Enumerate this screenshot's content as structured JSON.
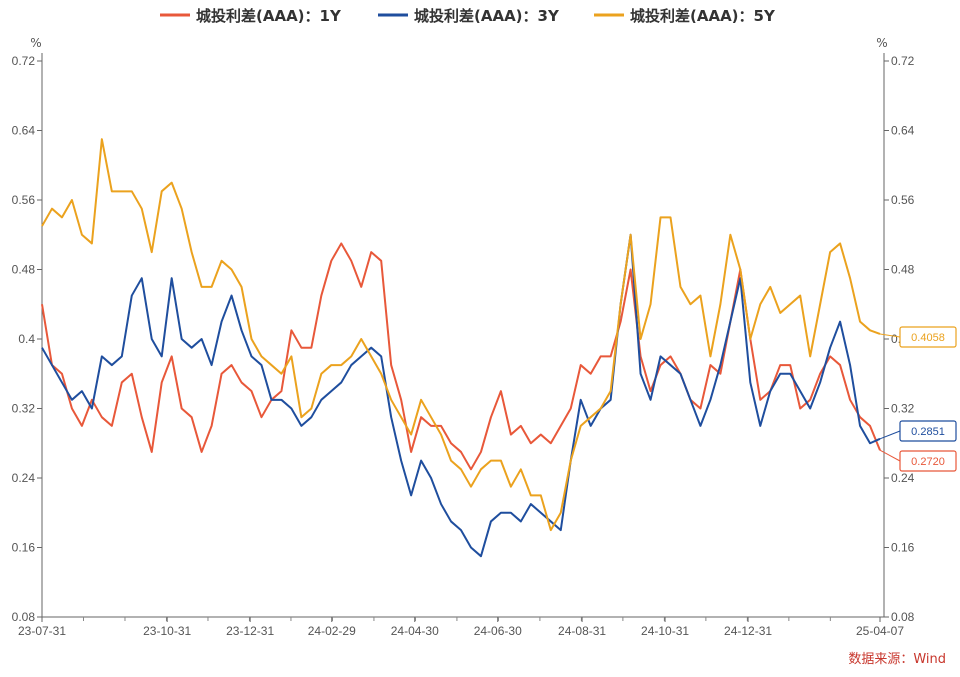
{
  "chart_data": {
    "type": "line",
    "title": "",
    "y_unit_left": "%",
    "y_unit_right": "%",
    "ylim": [
      0.08,
      0.72
    ],
    "y_ticks": [
      "0.08",
      "0.16",
      "0.24",
      "0.32",
      "0.4",
      "0.48",
      "0.56",
      "0.64",
      "0.72"
    ],
    "x_start": "2023-07-31",
    "x_end": "2025-04-07",
    "x_ticks": [
      {
        "date": "2023-07-31",
        "label": "23-07-31"
      },
      {
        "date": "2023-10-31",
        "label": "23-10-31"
      },
      {
        "date": "2023-12-31",
        "label": "23-12-31"
      },
      {
        "date": "2024-02-29",
        "label": "24-02-29"
      },
      {
        "date": "2024-04-30",
        "label": "24-04-30"
      },
      {
        "date": "2024-06-30",
        "label": "24-06-30"
      },
      {
        "date": "2024-08-31",
        "label": "24-08-31"
      },
      {
        "date": "2024-10-31",
        "label": "24-10-31"
      },
      {
        "date": "2024-12-31",
        "label": "24-12-31"
      },
      {
        "date": "2025-04-07",
        "label": "25-04-07"
      }
    ],
    "legend_position": "top-center",
    "series": [
      {
        "name": "城投利差(AAA)：1Y",
        "color": "#e8583a",
        "last_label": "0.2720",
        "values": [
          0.44,
          0.37,
          0.36,
          0.32,
          0.3,
          0.33,
          0.31,
          0.3,
          0.35,
          0.36,
          0.31,
          0.27,
          0.35,
          0.38,
          0.32,
          0.31,
          0.27,
          0.3,
          0.36,
          0.37,
          0.35,
          0.34,
          0.31,
          0.33,
          0.34,
          0.41,
          0.39,
          0.39,
          0.45,
          0.49,
          0.51,
          0.49,
          0.46,
          0.5,
          0.49,
          0.37,
          0.33,
          0.27,
          0.31,
          0.3,
          0.3,
          0.28,
          0.27,
          0.25,
          0.27,
          0.31,
          0.34,
          0.29,
          0.3,
          0.28,
          0.29,
          0.28,
          0.3,
          0.32,
          0.37,
          0.36,
          0.38,
          0.38,
          0.42,
          0.48,
          0.38,
          0.34,
          0.37,
          0.38,
          0.36,
          0.33,
          0.32,
          0.37,
          0.36,
          0.42,
          0.48,
          0.4,
          0.33,
          0.34,
          0.37,
          0.37,
          0.32,
          0.33,
          0.36,
          0.38,
          0.37,
          0.33,
          0.31,
          0.3,
          0.272
        ]
      },
      {
        "name": "城投利差(AAA)：3Y",
        "color": "#1f4e9e",
        "last_label": "0.2851",
        "values": [
          0.39,
          0.37,
          0.35,
          0.33,
          0.34,
          0.32,
          0.38,
          0.37,
          0.38,
          0.45,
          0.47,
          0.4,
          0.38,
          0.47,
          0.4,
          0.39,
          0.4,
          0.37,
          0.42,
          0.45,
          0.41,
          0.38,
          0.37,
          0.33,
          0.33,
          0.32,
          0.3,
          0.31,
          0.33,
          0.34,
          0.35,
          0.37,
          0.38,
          0.39,
          0.38,
          0.31,
          0.26,
          0.22,
          0.26,
          0.24,
          0.21,
          0.19,
          0.18,
          0.16,
          0.15,
          0.19,
          0.2,
          0.2,
          0.19,
          0.21,
          0.2,
          0.19,
          0.18,
          0.26,
          0.33,
          0.3,
          0.32,
          0.33,
          0.44,
          0.52,
          0.36,
          0.33,
          0.38,
          0.37,
          0.36,
          0.33,
          0.3,
          0.33,
          0.37,
          0.42,
          0.47,
          0.35,
          0.3,
          0.34,
          0.36,
          0.36,
          0.34,
          0.32,
          0.35,
          0.39,
          0.42,
          0.37,
          0.3,
          0.28,
          0.2851
        ]
      },
      {
        "name": "城投利差(AAA)：5Y",
        "color": "#eba21e",
        "last_label": "0.4058",
        "values": [
          0.53,
          0.55,
          0.54,
          0.56,
          0.52,
          0.51,
          0.63,
          0.57,
          0.57,
          0.57,
          0.55,
          0.5,
          0.57,
          0.58,
          0.55,
          0.5,
          0.46,
          0.46,
          0.49,
          0.48,
          0.46,
          0.4,
          0.38,
          0.37,
          0.36,
          0.38,
          0.31,
          0.32,
          0.36,
          0.37,
          0.37,
          0.38,
          0.4,
          0.38,
          0.36,
          0.33,
          0.31,
          0.29,
          0.33,
          0.31,
          0.29,
          0.26,
          0.25,
          0.23,
          0.25,
          0.26,
          0.26,
          0.23,
          0.25,
          0.22,
          0.22,
          0.18,
          0.2,
          0.26,
          0.3,
          0.31,
          0.32,
          0.34,
          0.44,
          0.52,
          0.4,
          0.44,
          0.54,
          0.54,
          0.46,
          0.44,
          0.45,
          0.38,
          0.44,
          0.52,
          0.48,
          0.4,
          0.44,
          0.46,
          0.43,
          0.44,
          0.45,
          0.38,
          0.44,
          0.5,
          0.51,
          0.47,
          0.42,
          0.41,
          0.4058
        ]
      }
    ]
  },
  "source": "数据来源：Wind"
}
